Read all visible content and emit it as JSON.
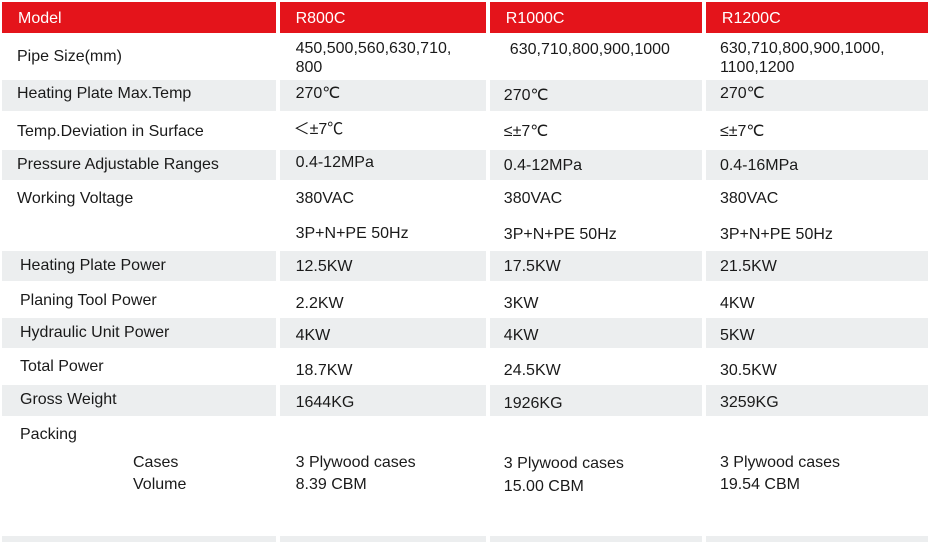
{
  "header": {
    "model_label": "Model",
    "models": [
      "R800C",
      "R1000C",
      "R1200C"
    ]
  },
  "rows": {
    "pipe_size": {
      "label": "Pipe Size(mm)",
      "r800": [
        "450,500,560,630,710,",
        "800"
      ],
      "r1000": "630,710,800,900,1000",
      "r1200": [
        "630,710,800,900,1000,",
        "1100,1200"
      ]
    },
    "heating_temp": {
      "label": "Heating Plate Max.Temp",
      "r800": "270℃",
      "r1000": "270℃",
      "r1200": "270℃"
    },
    "temp_dev": {
      "label": "Temp.Deviation in Surface",
      "r800": "＜±7℃",
      "r1000": "≤±7℃",
      "r1200": "≤±7℃"
    },
    "pressure": {
      "label": "Pressure Adjustable Ranges",
      "r800": "0.4-12MPa",
      "r1000": "0.4-12MPa",
      "r1200": "0.4-16MPa"
    },
    "voltage": {
      "label": "Working Voltage",
      "r800": [
        "380VAC",
        "3P+N+PE 50Hz"
      ],
      "r1000": [
        "380VAC",
        "3P+N+PE 50Hz"
      ],
      "r1200": [
        "380VAC",
        "3P+N+PE 50Hz"
      ]
    },
    "heating_power": {
      "label": "Heating Plate Power",
      "r800": "12.5KW",
      "r1000": "17.5KW",
      "r1200": "21.5KW"
    },
    "planing_power": {
      "label": "Planing Tool Power",
      "r800": "2.2KW",
      "r1000": "3KW",
      "r1200": "4KW"
    },
    "hydraulic_power": {
      "label": "Hydraulic Unit Power",
      "r800": "4KW",
      "r1000": "4KW",
      "r1200": "5KW"
    },
    "total_power": {
      "label": "Total Power",
      "r800": "18.7KW",
      "r1000": "24.5KW",
      "r1200": "30.5KW"
    },
    "gross_weight": {
      "label": "Gross Weight",
      "r800": "1644KG",
      "r1000": "1926KG",
      "r1200": "3259KG"
    },
    "packing": {
      "label": "Packing",
      "cases_label": "Cases",
      "volume_label": "Volume",
      "r800": [
        "3 Plywood cases",
        "8.39 CBM"
      ],
      "r1000": [
        "3 Plywood cases",
        "15.00 CBM"
      ],
      "r1200": [
        "3 Plywood cases",
        "19.54 CBM"
      ]
    }
  }
}
